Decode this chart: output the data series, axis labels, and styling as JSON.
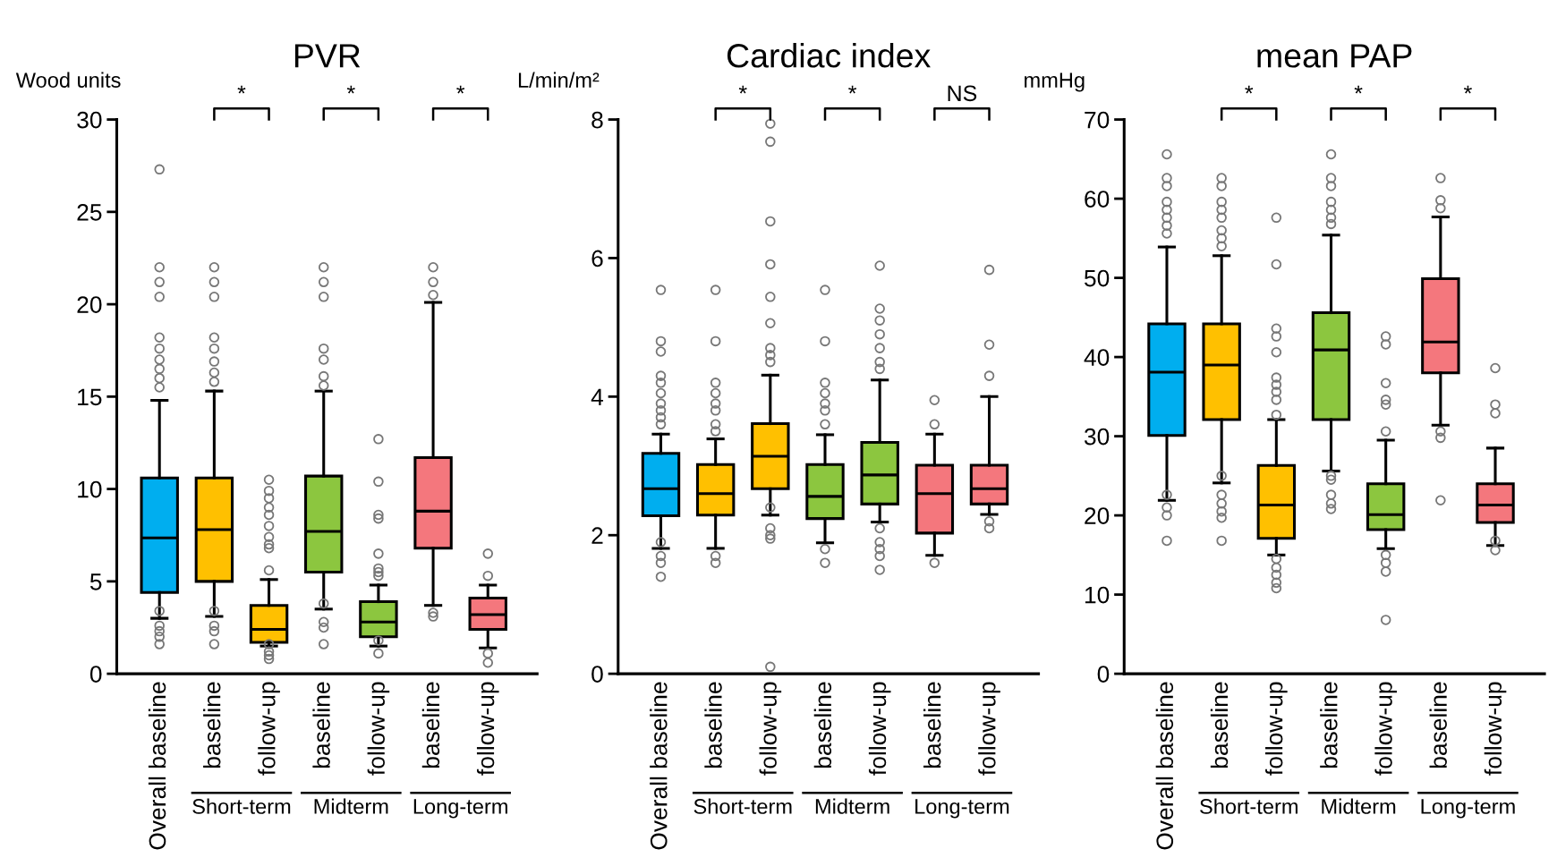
{
  "chart_data": [
    {
      "type": "box",
      "title": "PVR",
      "ylabel": "Wood units",
      "categories": [
        "Overall baseline",
        "baseline",
        "follow-up",
        "baseline",
        "follow-up",
        "baseline",
        "follow-up"
      ],
      "colors": [
        "#00aeef",
        "#ffc000",
        "#ffc000",
        "#8cc63f",
        "#8cc63f",
        "#f4777d",
        "#f4777d"
      ],
      "boxes": [
        {
          "low": 3.0,
          "q1": 4.4,
          "median": 7.35,
          "q3": 10.6,
          "high": 14.8,
          "outliers": [
            27.3,
            22,
            21.2,
            20.4,
            18.2,
            17.6,
            17,
            16.5,
            16,
            15.5,
            3.4,
            2.6,
            2.3,
            2.0,
            1.6
          ]
        },
        {
          "low": 3.1,
          "q1": 5.0,
          "median": 7.8,
          "q3": 10.6,
          "high": 15.3,
          "outliers": [
            22,
            21.2,
            20.4,
            18.2,
            17.6,
            16.9,
            16.3,
            15.8,
            3.4,
            2.6,
            2.3,
            1.6
          ]
        },
        {
          "low": 1.5,
          "q1": 1.7,
          "median": 2.4,
          "q3": 3.7,
          "high": 5.1,
          "outliers": [
            10.5,
            9.9,
            9.5,
            9.0,
            8.6,
            8.0,
            7.4,
            7.0,
            6.8,
            5.6,
            1.6,
            1.2,
            1.0,
            0.8
          ]
        },
        {
          "low": 3.5,
          "q1": 5.5,
          "median": 7.7,
          "q3": 10.7,
          "high": 15.3,
          "outliers": [
            22,
            21.2,
            20.4,
            17.6,
            17.0,
            16.1,
            15.6,
            3.8,
            2.8,
            2.5,
            1.6
          ]
        },
        {
          "low": 1.5,
          "q1": 2.0,
          "median": 2.8,
          "q3": 3.9,
          "high": 4.8,
          "outliers": [
            12.7,
            10.4,
            8.6,
            8.4,
            6.5,
            5.7,
            5.5,
            5.3,
            1.8,
            1.1
          ]
        },
        {
          "low": 3.7,
          "q1": 6.8,
          "median": 8.8,
          "q3": 11.7,
          "high": 20.1,
          "outliers": [
            22,
            21.2,
            20.5,
            3.3,
            3.1
          ]
        },
        {
          "low": 1.4,
          "q1": 2.4,
          "median": 3.2,
          "q3": 4.1,
          "high": 4.8,
          "outliers": [
            6.5,
            5.3,
            1.1,
            0.6
          ]
        }
      ],
      "ylim": [
        0,
        30
      ],
      "yticks": [
        0,
        5,
        10,
        15,
        20,
        25,
        30
      ],
      "annotations": [
        "*",
        "*",
        "*",
        "Short-term",
        "Midterm",
        "Long-term"
      ]
    },
    {
      "type": "box",
      "title": "Cardiac index",
      "ylabel": "L/min/m²",
      "categories": [
        "Overall baseline",
        "baseline",
        "follow-up",
        "baseline",
        "follow-up",
        "baseline",
        "follow-up"
      ],
      "colors": [
        "#00aeef",
        "#ffc000",
        "#ffc000",
        "#8cc63f",
        "#8cc63f",
        "#f4777d",
        "#f4777d"
      ],
      "boxes": [
        {
          "low": 1.81,
          "q1": 2.28,
          "median": 2.67,
          "q3": 3.18,
          "high": 3.46,
          "outliers": [
            5.54,
            4.8,
            4.65,
            4.3,
            4.2,
            4.05,
            3.9,
            3.8,
            3.7,
            3.6,
            1.9,
            1.7,
            1.6,
            1.4
          ]
        },
        {
          "low": 1.81,
          "q1": 2.29,
          "median": 2.6,
          "q3": 3.02,
          "high": 3.39,
          "outliers": [
            5.54,
            4.8,
            4.2,
            4.05,
            3.9,
            3.8,
            3.6,
            3.5,
            1.7,
            1.6
          ]
        },
        {
          "low": 2.29,
          "q1": 2.67,
          "median": 3.14,
          "q3": 3.61,
          "high": 4.31,
          "outliers": [
            7.94,
            7.68,
            6.53,
            5.91,
            5.44,
            5.06,
            4.7,
            4.6,
            4.5,
            2.4,
            2.1,
            2.0,
            1.95,
            0.1
          ]
        },
        {
          "low": 1.89,
          "q1": 2.24,
          "median": 2.56,
          "q3": 3.02,
          "high": 3.45,
          "outliers": [
            5.54,
            4.8,
            4.2,
            4.05,
            3.9,
            3.8,
            3.6,
            1.8,
            1.6
          ]
        },
        {
          "low": 2.19,
          "q1": 2.45,
          "median": 2.87,
          "q3": 3.34,
          "high": 4.24,
          "outliers": [
            5.89,
            5.27,
            5.1,
            4.9,
            4.7,
            4.5,
            4.4,
            2.1,
            1.9,
            1.8,
            1.7,
            1.5
          ]
        },
        {
          "low": 1.71,
          "q1": 2.03,
          "median": 2.6,
          "q3": 3.01,
          "high": 3.46,
          "outliers": [
            3.95,
            3.6,
            1.6
          ]
        },
        {
          "low": 2.3,
          "q1": 2.45,
          "median": 2.67,
          "q3": 3.01,
          "high": 4.0,
          "outliers": [
            5.83,
            4.75,
            4.3,
            2.2,
            2.1
          ]
        }
      ],
      "ylim": [
        0,
        8
      ],
      "yticks": [
        0,
        2,
        4,
        6,
        8
      ],
      "annotations": [
        "*",
        "*",
        "NS",
        "Short-term",
        "Midterm",
        "Long-term"
      ]
    },
    {
      "type": "box",
      "title": "mean PAP",
      "ylabel": "mmHg",
      "categories": [
        "Overall baseline",
        "baseline",
        "follow-up",
        "baseline",
        "follow-up",
        "baseline",
        "follow-up"
      ],
      "colors": [
        "#00aeef",
        "#ffc000",
        "#ffc000",
        "#8cc63f",
        "#8cc63f",
        "#f4777d",
        "#f4777d"
      ],
      "boxes": [
        {
          "low": 21.9,
          "q1": 30.1,
          "median": 38.1,
          "q3": 44.2,
          "high": 53.9,
          "outliers": [
            65.6,
            62.6,
            61.6,
            59.6,
            58.6,
            57.6,
            56.6,
            55.6,
            22.6,
            21,
            20,
            16.8
          ]
        },
        {
          "low": 24.1,
          "q1": 32.1,
          "median": 39.0,
          "q3": 44.2,
          "high": 52.8,
          "outliers": [
            62.6,
            61.6,
            59.6,
            58.6,
            57.6,
            56,
            55,
            54,
            25,
            22.6,
            21.5,
            20.5,
            19.7,
            16.8
          ]
        },
        {
          "low": 15.0,
          "q1": 17.1,
          "median": 21.3,
          "q3": 26.3,
          "high": 32.1,
          "outliers": [
            57.6,
            51.7,
            43.6,
            42.6,
            40.6,
            37.4,
            36.5,
            35.6,
            34.6,
            32.7,
            14.5,
            13.4,
            12.5,
            11.5,
            10.8
          ]
        },
        {
          "low": 25.6,
          "q1": 32.1,
          "median": 40.9,
          "q3": 45.6,
          "high": 55.4,
          "outliers": [
            65.6,
            62.6,
            61.6,
            59.6,
            58.6,
            57.6,
            56.8,
            25,
            24.5,
            22.6,
            21.5,
            20.8
          ]
        },
        {
          "low": 15.8,
          "q1": 18.2,
          "median": 20.1,
          "q3": 24.0,
          "high": 29.5,
          "outliers": [
            42.6,
            41.6,
            36.7,
            34.6,
            34.0,
            30.6,
            15.0,
            14.0,
            12.9,
            6.8
          ]
        },
        {
          "low": 31.4,
          "q1": 38.0,
          "median": 41.9,
          "q3": 49.9,
          "high": 57.7,
          "outliers": [
            62.6,
            59.8,
            58.8,
            30.6,
            29.8,
            21.9
          ]
        },
        {
          "low": 16.2,
          "q1": 19.1,
          "median": 21.3,
          "q3": 24.0,
          "high": 28.5,
          "outliers": [
            38.6,
            34.0,
            32.9,
            16.8,
            15.6
          ]
        }
      ],
      "ylim": [
        0,
        70
      ],
      "yticks": [
        0,
        10,
        20,
        30,
        40,
        50,
        60,
        70
      ],
      "annotations": [
        "*",
        "*",
        "*",
        "Short-term",
        "Midterm",
        "Long-term"
      ]
    }
  ]
}
